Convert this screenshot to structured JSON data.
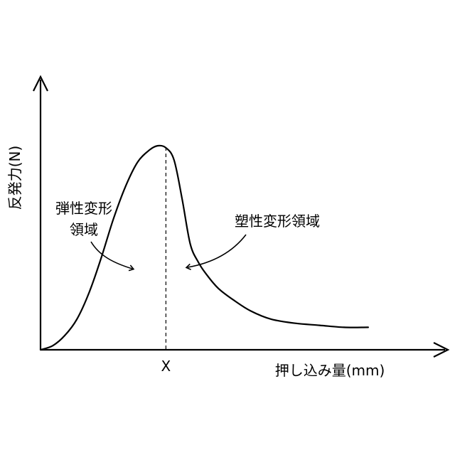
{
  "chart_data": {
    "type": "line",
    "title": "",
    "ylabel": "反発力(N)",
    "xlabel": "押し込み量(mm)",
    "x_marker_label": "X",
    "x_marker_value": 0.31,
    "grid": false,
    "xlim": [
      0,
      1
    ],
    "ylim": [
      0,
      1
    ],
    "series": [
      {
        "x": [
          0,
          0.03,
          0.06,
          0.09,
          0.12,
          0.15,
          0.18,
          0.21,
          0.24,
          0.27,
          0.29,
          0.31,
          0.33,
          0.35,
          0.37,
          0.39,
          0.41,
          0.44,
          0.48,
          0.52,
          0.57,
          0.63,
          0.69,
          0.75,
          0.81
        ],
        "y": [
          0,
          0.02,
          0.07,
          0.15,
          0.28,
          0.45,
          0.64,
          0.8,
          0.92,
          0.98,
          1,
          0.99,
          0.93,
          0.74,
          0.52,
          0.43,
          0.37,
          0.3,
          0.24,
          0.19,
          0.15,
          0.13,
          0.12,
          0.11,
          0.11
        ]
      }
    ],
    "annotations": [
      {
        "lines": [
          "弾性変形",
          "領域"
        ],
        "target": "rising-side"
      },
      {
        "lines": [
          "塑性変形領域"
        ],
        "target": "falling-side"
      }
    ]
  }
}
